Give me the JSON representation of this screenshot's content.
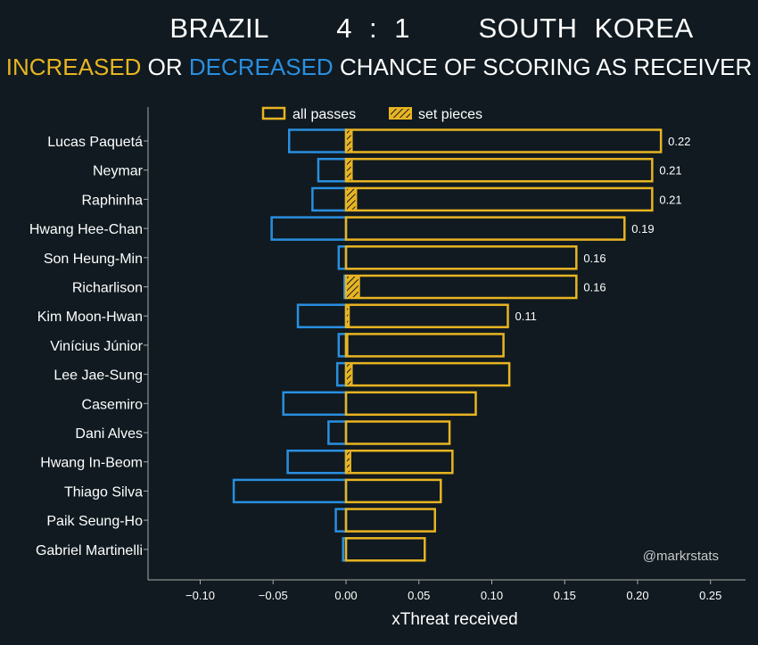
{
  "chart_data": {
    "type": "bar",
    "orientation": "horizontal",
    "title": "BRAZIL    4 : 1    SOUTH KOREA",
    "subtitle_parts": [
      {
        "text": "INCREASED",
        "color": "#e8b422"
      },
      {
        "text": " OR ",
        "color": "#ffffff"
      },
      {
        "text": "DECREASED",
        "color": "#2a8fe0"
      },
      {
        "text": " CHANCE OF SCORING AS RECEIVER",
        "color": "#ffffff"
      }
    ],
    "xlabel": "xThreat received",
    "ylabel": "",
    "xlim": [
      -0.135,
      0.275
    ],
    "xticks": [
      -0.1,
      -0.05,
      0.0,
      0.05,
      0.1,
      0.15,
      0.2,
      0.25
    ],
    "xtick_labels": [
      "−0.10",
      "−0.05",
      "0.00",
      "0.05",
      "0.10",
      "0.15",
      "0.20",
      "0.25"
    ],
    "grid": false,
    "legend": {
      "placement": "top-center",
      "entries": [
        "all passes",
        "set pieces"
      ]
    },
    "watermark": "@markrstats",
    "colors": {
      "increase": "#e8b422",
      "decrease": "#2a8fe0",
      "background": "#101a20"
    },
    "categories": [
      "Lucas Paquetá",
      "Neymar",
      "Raphinha",
      "Hwang Hee-Chan",
      "Son Heung-Min",
      "Richarlison",
      "Kim Moon-Hwan",
      "Vinícius Júnior",
      "Lee Jae-Sung",
      "Casemiro",
      "Dani Alves",
      "Hwang In-Beom",
      "Thiago Silva",
      "Paik Seung-Ho",
      "Gabriel Martinelli"
    ],
    "series": [
      {
        "name": "all passes",
        "key": "increase",
        "values": [
          0.216,
          0.21,
          0.21,
          0.191,
          0.158,
          0.158,
          0.111,
          0.108,
          0.112,
          0.089,
          0.071,
          0.073,
          0.065,
          0.061,
          0.054
        ]
      },
      {
        "name": "all passes",
        "key": "decrease",
        "values": [
          -0.039,
          -0.019,
          -0.023,
          -0.051,
          -0.005,
          -0.001,
          -0.033,
          -0.005,
          -0.006,
          -0.043,
          -0.012,
          -0.04,
          -0.077,
          -0.007,
          -0.002
        ]
      },
      {
        "name": "set pieces",
        "key": "set_pieces",
        "values": [
          0.004,
          0.004,
          0.007,
          0.0,
          0.0,
          0.009,
          0.002,
          0.001,
          0.004,
          0.0,
          0.0,
          0.003,
          0.0,
          0.0,
          0.0
        ]
      }
    ],
    "data_labels": [
      "0.22",
      "0.21",
      "0.21",
      "0.19",
      "0.16",
      "0.16",
      "0.11",
      "",
      "",
      "",
      "",
      "",
      "",
      "",
      ""
    ]
  }
}
